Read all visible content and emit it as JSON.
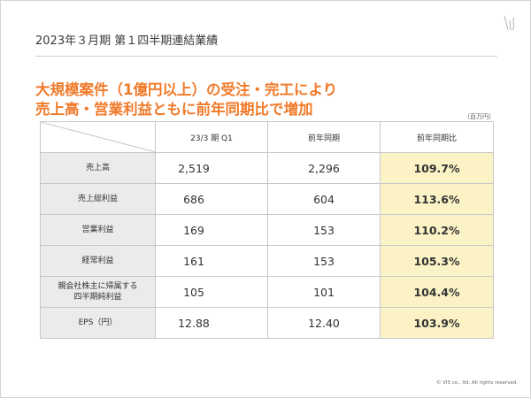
{
  "header": {
    "title": "2023年３月期 第１四半期連結業績"
  },
  "headline": {
    "line1": "大規模案件（1億円以上）の受注・完工により",
    "line2": "売上高・営業利益ともに前年同期比で増加"
  },
  "unit": "（百万円）",
  "table": {
    "columns": [
      "23/3 期 Q1",
      "前年同期",
      "前年同期比"
    ],
    "rows": [
      {
        "label": "売上高",
        "current": "2,519",
        "prior": "2,296",
        "ratio": "109.7%"
      },
      {
        "label": "売上総利益",
        "current": "686",
        "prior": "604",
        "ratio": "113.6%"
      },
      {
        "label": "営業利益",
        "current": "169",
        "prior": "153",
        "ratio": "110.2%"
      },
      {
        "label": "経常利益",
        "current": "161",
        "prior": "153",
        "ratio": "105.3%"
      },
      {
        "label_line1": "親会社株主に帰属する",
        "label_line2": "四半期純利益",
        "current": "105",
        "prior": "101",
        "ratio": "104.4%"
      },
      {
        "label": "EPS（円）",
        "current": "12.88",
        "prior": "12.40",
        "ratio": "103.9%"
      }
    ]
  },
  "footer": {
    "copyright": "© VIS co., ltd. All rights reserved."
  },
  "colors": {
    "accent": "#f07a2a",
    "highlight": "#fbf3c6",
    "label_bg": "#ebebeb"
  },
  "icons": {
    "logo": "vis-logo-icon"
  }
}
